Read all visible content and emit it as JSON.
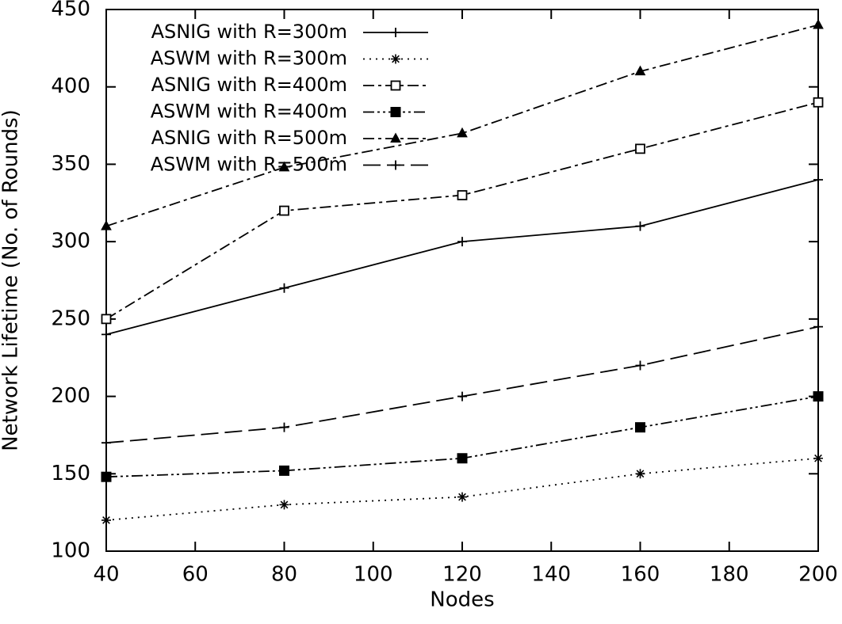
{
  "chart_data": {
    "type": "line",
    "title": "",
    "xlabel": "Nodes",
    "ylabel": "Network Lifetime (No. of Rounds)",
    "xlim": [
      40,
      200
    ],
    "ylim": [
      100,
      450
    ],
    "xticks": [
      40,
      60,
      80,
      100,
      120,
      140,
      160,
      180,
      200
    ],
    "yticks": [
      100,
      150,
      200,
      250,
      300,
      350,
      400,
      450
    ],
    "grid": false,
    "legend_position": "top-left",
    "x": [
      40,
      80,
      120,
      160,
      200
    ],
    "series": [
      {
        "name": "ASNIG with R=300m",
        "values": [
          240,
          270,
          300,
          310,
          340
        ],
        "dash": "solid",
        "marker": "plus"
      },
      {
        "name": "ASWM with R=300m",
        "values": [
          120,
          130,
          135,
          150,
          160
        ],
        "dash": "dotted",
        "marker": "star"
      },
      {
        "name": "ASNIG with R=400m",
        "values": [
          250,
          320,
          330,
          360,
          390
        ],
        "dash": "dashdot",
        "marker": "open-square"
      },
      {
        "name": "ASWM with R=400m",
        "values": [
          148,
          152,
          160,
          180,
          200
        ],
        "dash": "dashdotdot",
        "marker": "filled-square"
      },
      {
        "name": "ASNIG with R=500m",
        "values": [
          310,
          348,
          370,
          410,
          440
        ],
        "dash": "dashdot",
        "marker": "filled-triangle"
      },
      {
        "name": "ASWM with R=500m",
        "values": [
          170,
          180,
          200,
          220,
          245
        ],
        "dash": "longdash",
        "marker": "plus"
      }
    ]
  }
}
